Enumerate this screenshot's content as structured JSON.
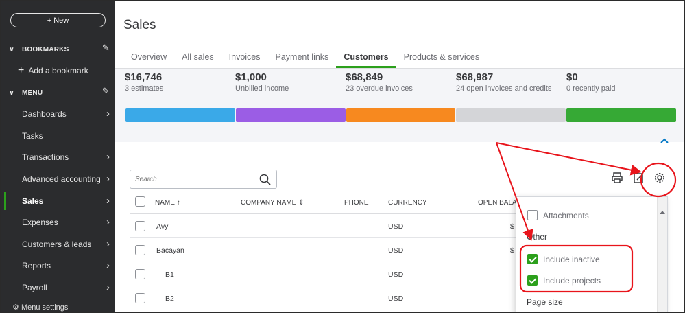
{
  "sidebar": {
    "new_label": "+ New",
    "bookmarks_label": "BOOKMARKS",
    "add_bookmark_label": "Add a bookmark",
    "menu_label": "MENU",
    "items": [
      {
        "label": "Dashboards",
        "has_arrow": true
      },
      {
        "label": "Tasks",
        "has_arrow": false
      },
      {
        "label": "Transactions",
        "has_arrow": true
      },
      {
        "label": "Advanced accounting",
        "has_arrow": true
      },
      {
        "label": "Sales",
        "has_arrow": true,
        "active": true
      },
      {
        "label": "Expenses",
        "has_arrow": true
      },
      {
        "label": "Customers & leads",
        "has_arrow": true
      },
      {
        "label": "Reports",
        "has_arrow": true
      },
      {
        "label": "Payroll",
        "has_arrow": true
      }
    ],
    "menu_settings_label": "Menu settings"
  },
  "header": {
    "title": "Sales",
    "tabs": [
      {
        "label": "Overview"
      },
      {
        "label": "All sales"
      },
      {
        "label": "Invoices"
      },
      {
        "label": "Payment links"
      },
      {
        "label": "Customers",
        "active": true
      },
      {
        "label": "Products & services"
      }
    ]
  },
  "summary": {
    "stats": [
      {
        "amount": "$16,746",
        "label": "3 estimates",
        "color": "#3aa9e8"
      },
      {
        "amount": "$1,000",
        "label": "Unbilled income",
        "color": "#9b5de5"
      },
      {
        "amount": "$68,849",
        "label": "23 overdue invoices",
        "color": "#f7891f"
      },
      {
        "amount": "$68,987",
        "label": "24 open invoices and credits",
        "color": "#d4d5d8"
      },
      {
        "amount": "$0",
        "label": "0 recently paid",
        "color": "#36a935"
      }
    ]
  },
  "search": {
    "placeholder": "Search"
  },
  "table": {
    "columns": [
      "NAME ↑",
      "COMPANY NAME ⇕",
      "PHONE",
      "CURRENCY",
      "OPEN BALAN"
    ],
    "rows": [
      {
        "name": "Avy",
        "company": "",
        "phone": "",
        "currency": "USD",
        "balance": "$"
      },
      {
        "name": "Bacayan",
        "company": "",
        "phone": "",
        "currency": "USD",
        "balance": "$"
      },
      {
        "name": "B1",
        "company": "",
        "phone": "",
        "currency": "USD",
        "balance": ""
      },
      {
        "name": "B2",
        "company": "",
        "phone": "",
        "currency": "USD",
        "balance": ""
      }
    ]
  },
  "settings_panel": {
    "attachments_label": "Attachments",
    "attachments_checked": false,
    "other_header": "Other",
    "include_inactive_label": "Include inactive",
    "include_inactive_checked": true,
    "include_projects_label": "Include projects",
    "include_projects_checked": true,
    "page_size_header": "Page size"
  },
  "colors": {
    "sidebar_bg": "#2b2c2e",
    "accent_green": "#2ca01c",
    "annotation_red": "#e8141b",
    "link_blue": "#0077c5"
  },
  "icons": [
    "pencil-icon",
    "chevron-right-icon",
    "chevron-down-icon",
    "search-icon",
    "print-icon",
    "export-icon",
    "gear-icon",
    "chevron-up-icon"
  ]
}
